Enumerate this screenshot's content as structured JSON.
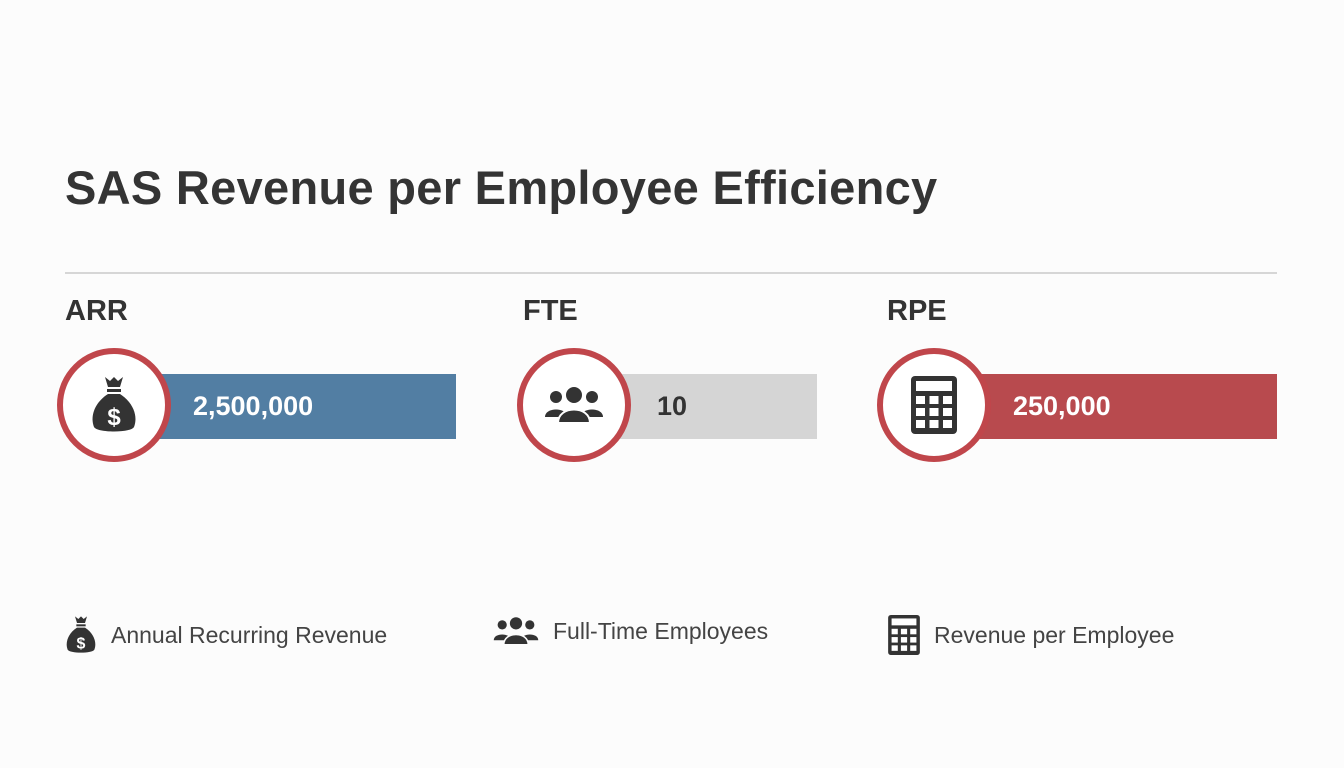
{
  "title": "SAS Revenue per Employee Efficiency",
  "metrics": [
    {
      "label": "ARR",
      "value": "2,500,000",
      "icon": "money-bag-icon",
      "bar_color": "#527ea3",
      "text_color": "#ffffff"
    },
    {
      "label": "FTE",
      "value": "10",
      "icon": "users-icon",
      "bar_color": "#d5d5d5",
      "text_color": "#333333"
    },
    {
      "label": "RPE",
      "value": "250,000",
      "icon": "calculator-icon",
      "bar_color": "#b84a4e",
      "text_color": "#ffffff"
    }
  ],
  "legend": [
    {
      "icon": "money-bag-icon",
      "text": "Annual Recurring Revenue"
    },
    {
      "icon": "users-icon",
      "text": "Full-Time Employees"
    },
    {
      "icon": "calculator-icon",
      "text": "Revenue per Employee"
    }
  ],
  "accent_ring_color": "#c0464b"
}
